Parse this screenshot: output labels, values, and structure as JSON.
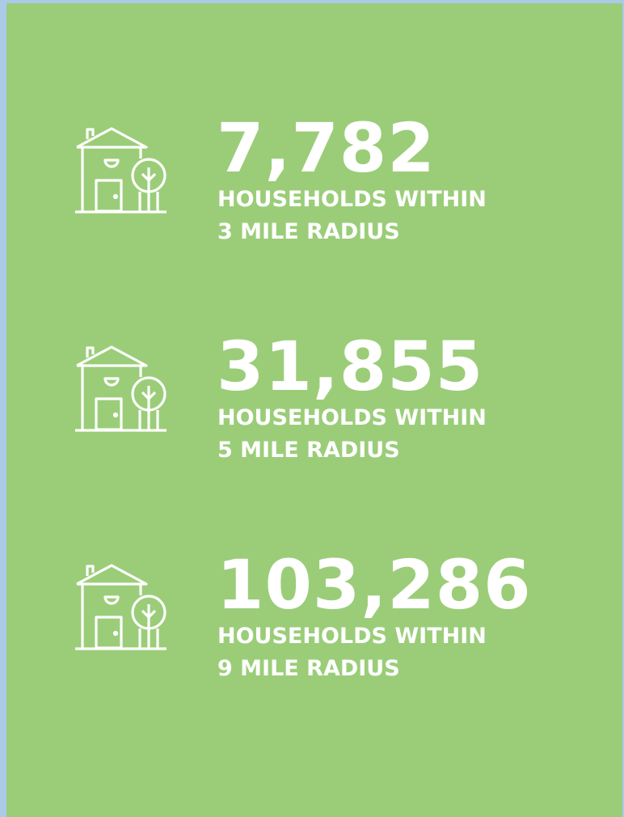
{
  "stats": [
    {
      "number": "7,782",
      "label": [
        "HOUSEHOLDS WITHIN",
        "3 MILE RADIUS"
      ]
    },
    {
      "number": "31,855",
      "label": [
        "HOUSEHOLDS WITHIN",
        "5 MILE RADIUS"
      ]
    },
    {
      "number": "103,286",
      "label": [
        "HOUSEHOLDS WITHIN",
        "9 MILE RADIUS"
      ]
    }
  ]
}
